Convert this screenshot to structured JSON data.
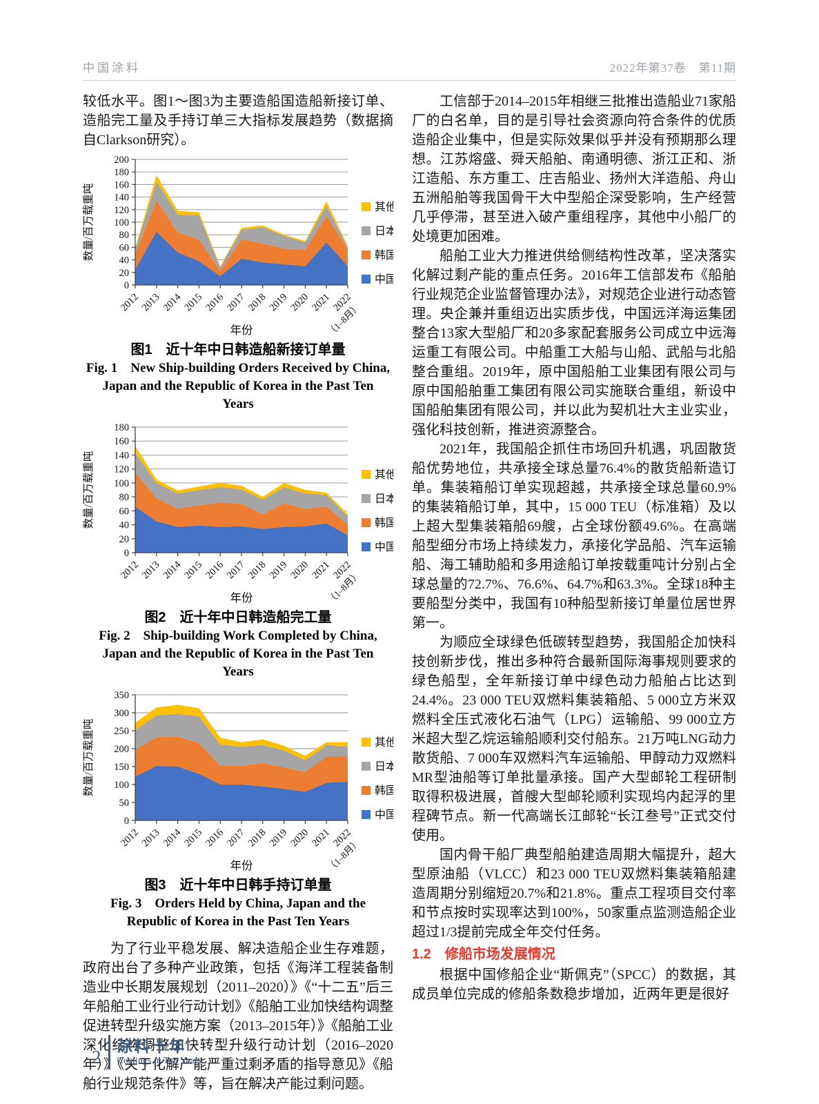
{
  "header": {
    "journal_zh": "中国涂料",
    "issue": "2022年第37卷　第11期"
  },
  "footer": {
    "page_number": "2",
    "brand_zh": "涂料十年",
    "brand_en": "Coatings in Ten Years"
  },
  "colors": {
    "china_blue": "#4472C4",
    "korea_orange": "#ED7D31",
    "japan_gray": "#A5A5A5",
    "other_yellow": "#FFC000",
    "heading_red": "#E8392D",
    "footer_blue": "#3E5C80",
    "header_gray": "#9BA3A9"
  },
  "left_column": {
    "para_intro": "较低水平。图1～图3为主要造船国造船新接订单、造船完工量及手持订单三大指标发展趋势（数据摘自Clarkson研究）。",
    "para_policy": "为了行业平稳发展、解决造船企业生存难题，政府出台了多种产业政策，包括《海洋工程装备制造业中长期发展规划（2011–2020）》《“十二五”后三年船舶工业行业行动计划》《船舶工业加快结构调整促进转型升级实施方案（2013–2015年）》《船舶工业深化结构调整加快转型升级行动计划（2016–2020年）》《关于化解产能严重过剩矛盾的指导意见》《船舶行业规范条件》等，旨在解决产能过剩问题。"
  },
  "right_column": {
    "para_whitelist": "工信部于2014–2015年相继三批推出造船业71家船厂的白名单，目的是引导社会资源向符合条件的优质造船企业集中，但是实际效果似乎并没有预期那么理想。江苏熔盛、舜天船舶、南通明德、浙江正和、浙江造船、东方重工、庄吉船业、扬州大洋造船、舟山五洲船舶等我国骨干大中型船企深受影响，生产经营几乎停滞，甚至进入破产重组程序，其他中小船厂的处境更加困难。",
    "para_reform": "船舶工业大力推进供给侧结构性改革，坚决落实化解过剩产能的重点任务。2016年工信部发布《船舶行业规范企业监督管理办法》，对规范企业进行动态管理。央企兼并重组迈出实质步伐，中国远洋海运集团整合13家大型船厂和20多家配套服务公司成立中远海运重工有限公司。中船重工大船与山船、武船与北船整合重组。2019年，原中国船舶工业集团有限公司与原中国船舶重工集团有限公司实施联合重组，新设中国船舶集团有限公司，并以此为契机壮大主业实业，强化科技创新，推进资源整合。",
    "para_2021": "2021年，我国船企抓住市场回升机遇，巩固散货船优势地位，共承接全球总量76.4%的散货船新造订单。集装箱船订单实现超越，共承接全球总量60.9%的集装箱船订单，其中，15 000 TEU（标准箱）及以上超大型集装箱船69艘，占全球份额49.6%。在高端船型细分市场上持续发力，承接化学品船、汽车运输船、海工辅助船和多用途船订单按载重吨计分别占全球总量的72.7%、76.6%、64.7%和63.3%。全球18种主要船型分类中，我国有10种船型新接订单量位居世界第一。",
    "para_green": "为顺应全球绿色低碳转型趋势，我国船企加快科技创新步伐，推出多种符合最新国际海事规则要求的绿色船型，全年新接订单中绿色动力船舶占比达到24.4%。23 000 TEU双燃料集装箱船、5 000立方米双燃料全压式液化石油气（LPG）运输船、99 000立方米超大型乙烷运输船顺利交付船东。21万吨LNG动力散货船、7 000车双燃料汽车运输船、甲醇动力双燃料MR型油船等订单批量承接。国产大型邮轮工程研制取得积极进展，首艘大型邮轮顺利实现坞内起浮的里程碑节点。新一代高端长江邮轮“长江叁号”正式交付使用。",
    "para_cycle": "国内骨干船厂典型船舶建造周期大幅提升，超大型原油船（VLCC）和23 000 TEU双燃料集装箱船建造周期分别缩短20.7%和21.8%。重点工程项目交付率和节点按时实现率达到100%，50家重点监测造船企业超过1/3提前完成全年交付任务。",
    "section_heading": "1.2　修船市场发展情况",
    "para_repair": "根据中国修船企业“斯佩克”（SPCC）的数据，其成员单位完成的修船条数稳步增加，近两年更是很好"
  },
  "chart_data": [
    {
      "type": "area",
      "stacked": true,
      "title_zh": "图1　近十年中日韩造船新接订单量",
      "title_en": "Fig. 1　New Ship-building Orders Received by China, Japan and the Republic of Korea in the Past Ten Years",
      "categories": [
        "2012",
        "2013",
        "2014",
        "2015",
        "2016",
        "2017",
        "2018",
        "2019",
        "2020",
        "2021",
        "2022"
      ],
      "last_tick_note": "（1–8月）",
      "xlabel": "年份",
      "ylabel": "数量/百万载重吨",
      "ylim": [
        0,
        200
      ],
      "ystep": 20,
      "grid": true,
      "legend_position": "right",
      "legend_order": [
        "其他",
        "日本",
        "韩国",
        "中国"
      ],
      "series": [
        {
          "name": "中国",
          "color": "#4472C4",
          "values": [
            25,
            85,
            52,
            38,
            14,
            42,
            36,
            33,
            30,
            68,
            30
          ]
        },
        {
          "name": "韩国",
          "color": "#ED7D31",
          "values": [
            25,
            50,
            32,
            34,
            8,
            31,
            30,
            25,
            26,
            42,
            27
          ]
        },
        {
          "name": "日本",
          "color": "#A5A5A5",
          "values": [
            7,
            30,
            28,
            39,
            6,
            15,
            26,
            20,
            12,
            16,
            3
          ]
        },
        {
          "name": "其他",
          "color": "#FFC000",
          "values": [
            2,
            10,
            6,
            5,
            2,
            3,
            3,
            2,
            2,
            7,
            2
          ]
        }
      ]
    },
    {
      "type": "area",
      "stacked": true,
      "title_zh": "图2　近十年中日韩造船完工量",
      "title_en": "Fig. 2　Ship-building Work Completed by China, Japan and the Republic of Korea in the Past Ten Years",
      "categories": [
        "2012",
        "2013",
        "2014",
        "2015",
        "2016",
        "2017",
        "2018",
        "2019",
        "2020",
        "2021",
        "2022"
      ],
      "last_tick_note": "（1–8月）",
      "xlabel": "年份",
      "ylabel": "数量/百万载重吨",
      "ylim": [
        0,
        180
      ],
      "ystep": 20,
      "grid": true,
      "legend_position": "right",
      "legend_order": [
        "其他",
        "日本",
        "韩国",
        "中国"
      ],
      "series": [
        {
          "name": "中国",
          "color": "#4472C4",
          "values": [
            66,
            45,
            37,
            39,
            37,
            38,
            34,
            37,
            38,
            42,
            25
          ]
        },
        {
          "name": "韩国",
          "color": "#ED7D31",
          "values": [
            49,
            33,
            26,
            29,
            35,
            32,
            21,
            34,
            25,
            24,
            15
          ]
        },
        {
          "name": "日本",
          "color": "#A5A5A5",
          "values": [
            28,
            22,
            22,
            22,
            22,
            21,
            21,
            23,
            22,
            17,
            12
          ]
        },
        {
          "name": "其他",
          "color": "#FFC000",
          "values": [
            10,
            5,
            4,
            5,
            6,
            5,
            4,
            6,
            5,
            3,
            3
          ]
        }
      ]
    },
    {
      "type": "area",
      "stacked": true,
      "title_zh": "图3　近十年中日韩手持订单量",
      "title_en": "Fig. 3　Orders Held by China, Japan and the Republic of Korea in the Past Ten Years",
      "categories": [
        "2012",
        "2013",
        "2014",
        "2015",
        "2016",
        "2017",
        "2018",
        "2019",
        "2020",
        "2021",
        "2022"
      ],
      "last_tick_note": "（1–8月）",
      "xlabel": "年份",
      "ylabel": "数量/百万载重吨",
      "ylim": [
        0,
        350
      ],
      "ystep": 50,
      "grid": true,
      "legend_position": "right",
      "legend_order": [
        "其他",
        "日本",
        "韩国",
        "中国"
      ],
      "series": [
        {
          "name": "中国",
          "color": "#4472C4",
          "values": [
            122,
            152,
            150,
            130,
            100,
            100,
            95,
            88,
            80,
            105,
            108
          ]
        },
        {
          "name": "韩国",
          "color": "#ED7D31",
          "values": [
            75,
            80,
            84,
            85,
            53,
            52,
            65,
            60,
            55,
            73,
            70
          ]
        },
        {
          "name": "日本",
          "color": "#A5A5A5",
          "values": [
            55,
            61,
            63,
            75,
            59,
            53,
            50,
            47,
            33,
            32,
            27
          ]
        },
        {
          "name": "其他",
          "color": "#FFC000",
          "values": [
            20,
            22,
            25,
            23,
            18,
            13,
            16,
            13,
            12,
            8,
            13
          ]
        }
      ]
    }
  ]
}
